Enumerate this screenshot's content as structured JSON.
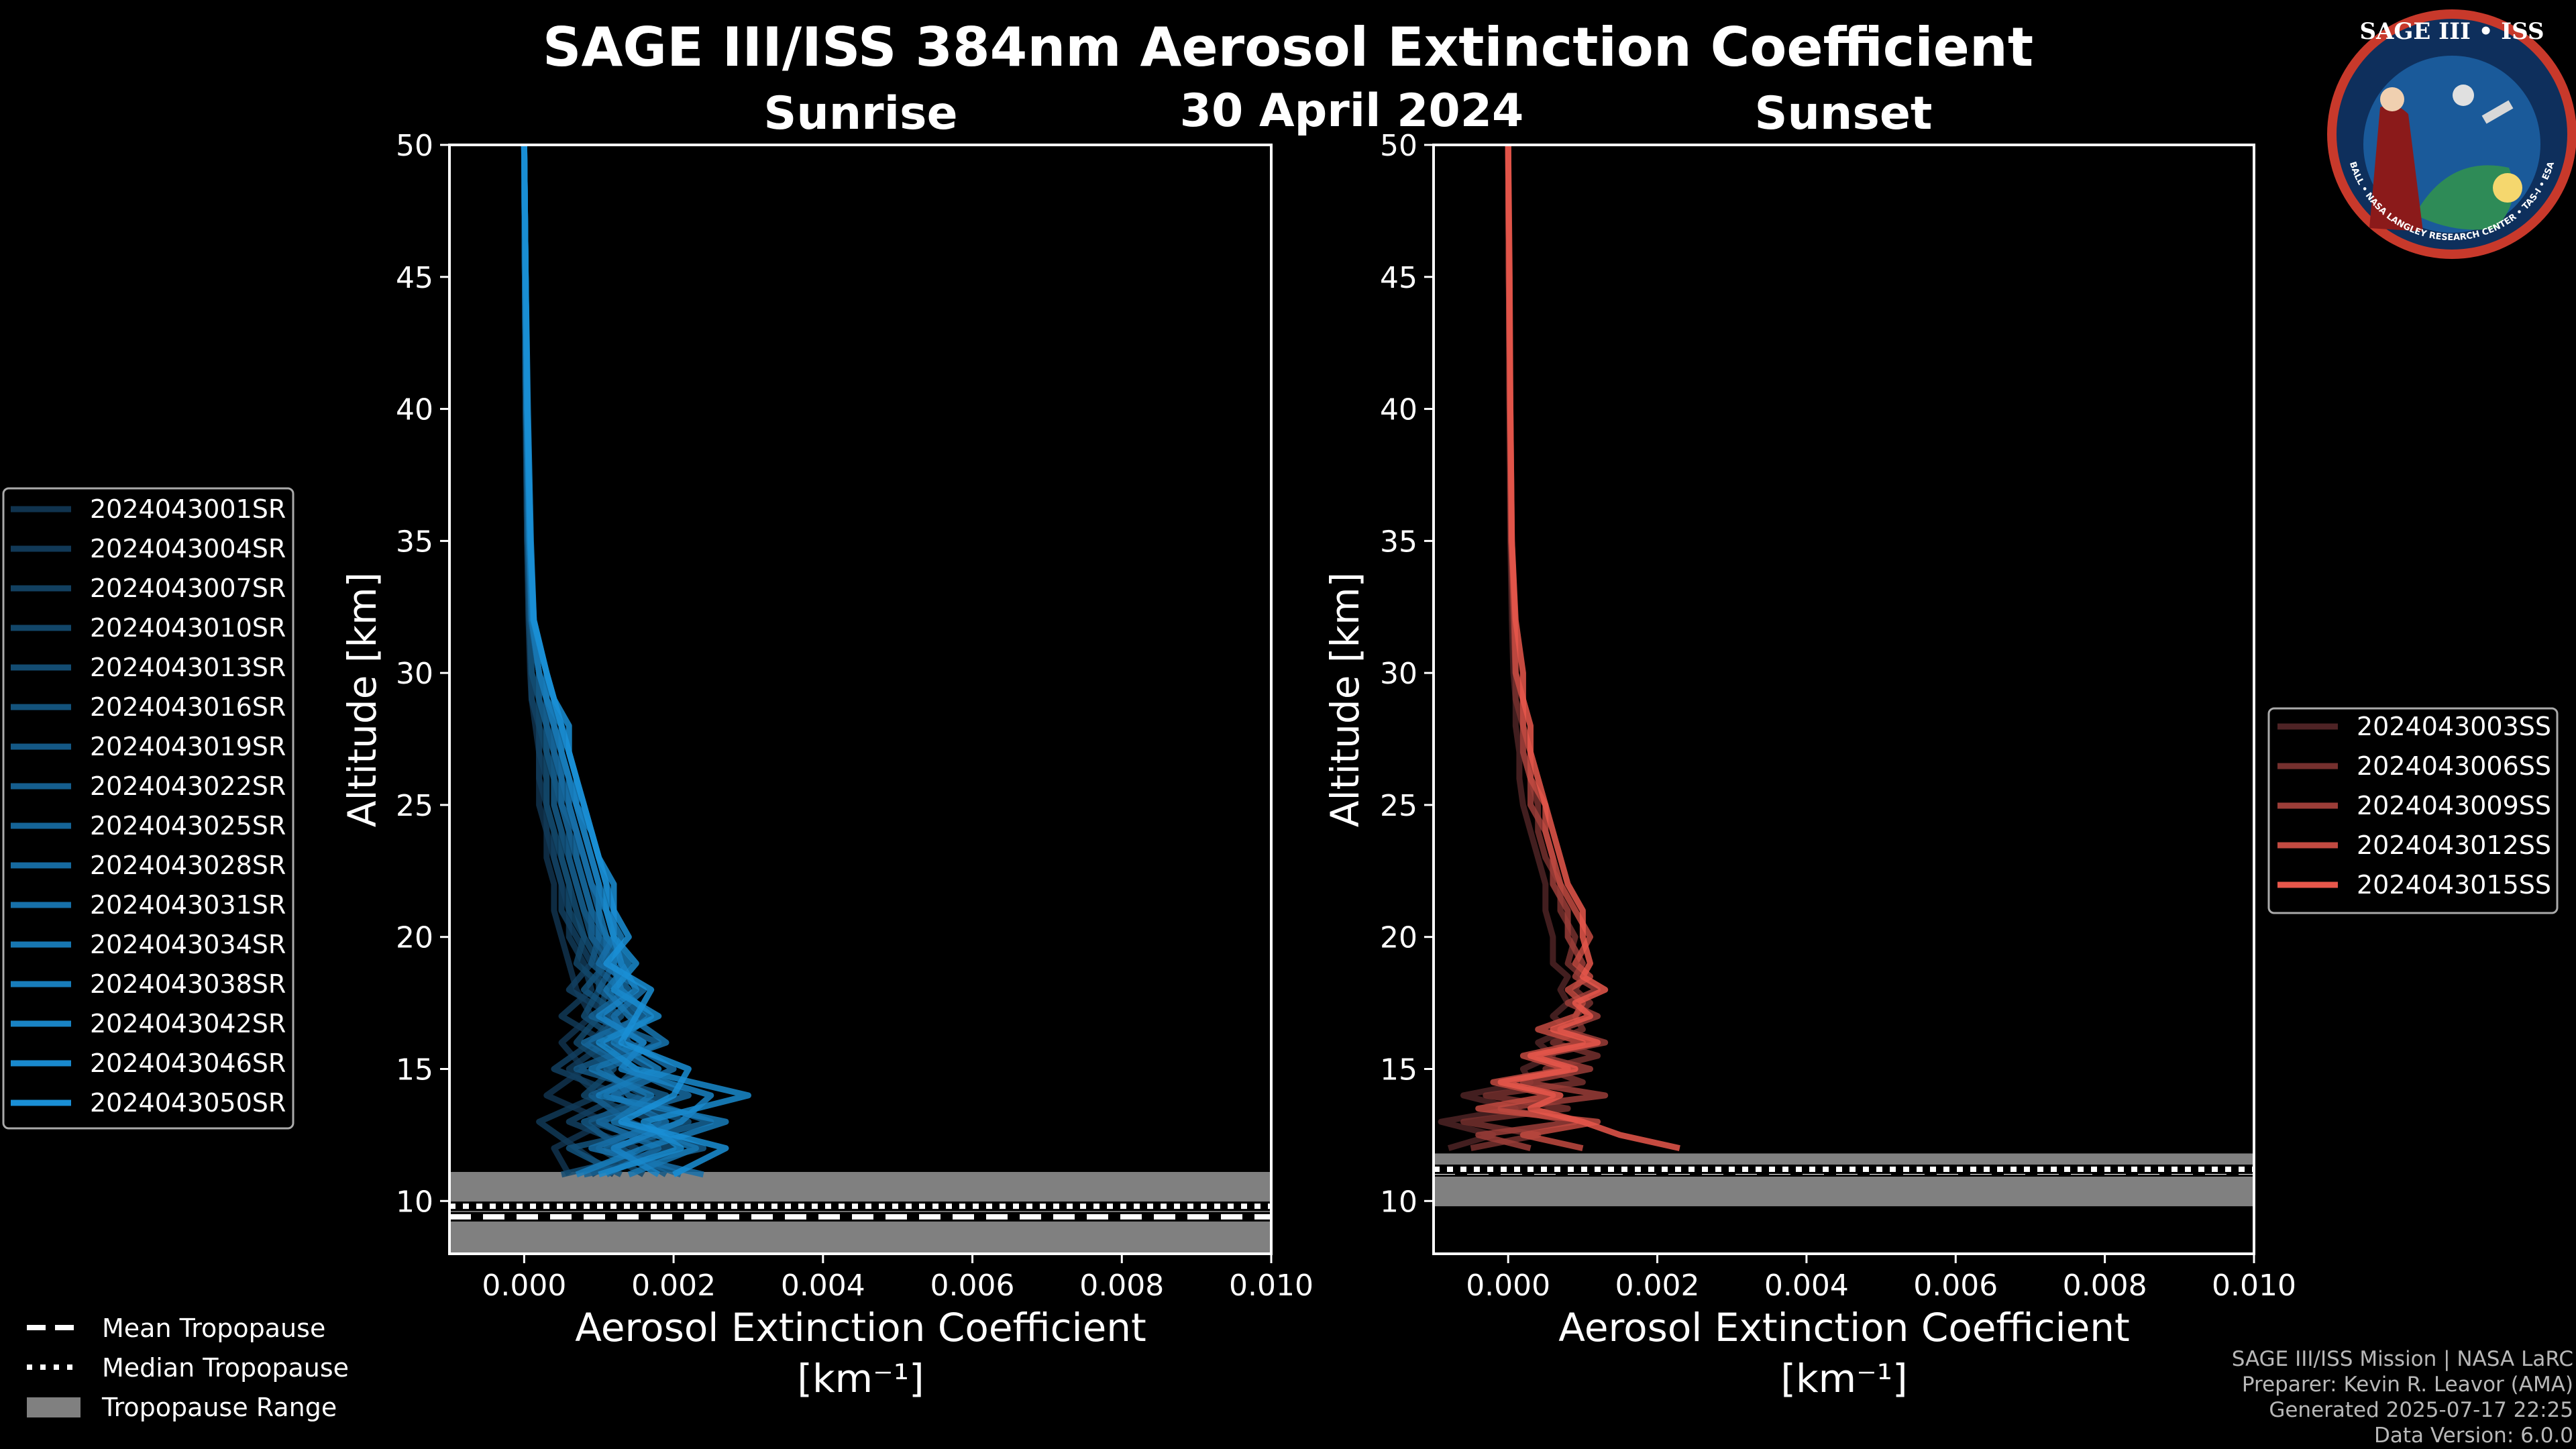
{
  "figure": {
    "title": "SAGE III/ISS 384nm Aerosol Extinction Coefficient",
    "date": "30 April 2024",
    "logo": {
      "top": "SAGE III • ISS",
      "ring": "BALL • NASA LANGLEY RESEARCH CENTER • TAS-I • ESA"
    },
    "credits": [
      "SAGE III/ISS Mission | NASA LaRC",
      "Preparer: Kevin R. Leavor (AMA)",
      "Generated 2025-07-17 22:25",
      "Data Version: 6.0.0"
    ],
    "tropopause_legend": [
      "Mean Tropopause",
      "Median Tropopause",
      "Tropopause Range"
    ]
  },
  "colors": {
    "background": "#000000",
    "sunrise": "#1a8fd6",
    "sunset": "#e8574b",
    "tropopause_fill": "#808080"
  },
  "chart_data": [
    {
      "type": "line",
      "title": "Sunrise",
      "xlabel": "Aerosol Extinction Coefficient",
      "xlabel_unit": "[km⁻¹]",
      "ylabel": "Altitude [km]",
      "xlim": [
        -0.001,
        0.01
      ],
      "ylim": [
        8,
        50
      ],
      "xticks": [
        0.0,
        0.002,
        0.004,
        0.006,
        0.008,
        0.01
      ],
      "xtick_labels": [
        "0.000",
        "0.002",
        "0.004",
        "0.006",
        "0.008",
        "0.010"
      ],
      "yticks": [
        10,
        15,
        20,
        25,
        30,
        35,
        40,
        45,
        50
      ],
      "tropopause": {
        "mean": 9.4,
        "median": 9.8,
        "range": [
          8.0,
          11.1
        ]
      },
      "altitudes": [
        11,
        12,
        13,
        14,
        15,
        16,
        17,
        18,
        19,
        20,
        21,
        22,
        23,
        24,
        25,
        26,
        27,
        28,
        29,
        30,
        32,
        35,
        40,
        45,
        50
      ],
      "series": [
        {
          "name": "2024043001SR",
          "values": [
            0.0006,
            0.0004,
            0.0011,
            0.0003,
            0.0008,
            0.0005,
            0.0009,
            0.0007,
            0.0006,
            0.0005,
            0.0004,
            0.0004,
            0.0003,
            0.0003,
            0.0002,
            0.0002,
            0.0002,
            0.00015,
            0.0001,
            8e-05,
            6e-05,
            4e-05,
            2e-05,
            1e-05,
            0.0
          ]
        },
        {
          "name": "2024043004SR",
          "values": [
            0.0012,
            0.0007,
            0.0002,
            0.001,
            0.0006,
            0.0011,
            0.0005,
            0.0009,
            0.0008,
            0.0006,
            0.0006,
            0.0005,
            0.0004,
            0.0003,
            0.0003,
            0.0002,
            0.0002,
            0.0002,
            0.0001,
            9e-05,
            6e-05,
            4e-05,
            2e-05,
            1e-05,
            0.0
          ]
        },
        {
          "name": "2024043007SR",
          "values": [
            0.0009,
            0.0015,
            0.0006,
            0.0013,
            0.0004,
            0.0009,
            0.0012,
            0.0006,
            0.0009,
            0.0007,
            0.0005,
            0.0005,
            0.0004,
            0.0004,
            0.0003,
            0.0003,
            0.0002,
            0.0002,
            0.0001,
            0.0001,
            7e-05,
            4e-05,
            2e-05,
            1e-05,
            0.0
          ]
        },
        {
          "name": "2024043010SR",
          "values": [
            0.0016,
            0.001,
            0.0018,
            0.0008,
            0.0012,
            0.0007,
            0.001,
            0.0011,
            0.0007,
            0.0008,
            0.0006,
            0.0006,
            0.0005,
            0.0004,
            0.0003,
            0.0003,
            0.0003,
            0.0002,
            0.0002,
            0.0001,
            7e-05,
            5e-05,
            2e-05,
            1e-05,
            0.0
          ]
        },
        {
          "name": "2024043013SR",
          "values": [
            0.0005,
            0.002,
            0.0009,
            0.0016,
            0.001,
            0.0013,
            0.0008,
            0.001,
            0.001,
            0.0008,
            0.0007,
            0.0006,
            0.0005,
            0.0005,
            0.0004,
            0.0004,
            0.0003,
            0.0003,
            0.0002,
            0.0001,
            8e-05,
            5e-05,
            3e-05,
            1e-05,
            0.0
          ]
        },
        {
          "name": "2024043016SR",
          "values": [
            0.0013,
            0.0006,
            0.0022,
            0.0011,
            0.0015,
            0.0009,
            0.0013,
            0.0008,
            0.0011,
            0.0009,
            0.0008,
            0.0007,
            0.0006,
            0.0005,
            0.0004,
            0.0004,
            0.0003,
            0.0003,
            0.0002,
            0.0002,
            8e-05,
            5e-05,
            3e-05,
            1e-05,
            0.0
          ]
        },
        {
          "name": "2024043019SR",
          "values": [
            0.0019,
            0.0013,
            0.0008,
            0.0019,
            0.0007,
            0.0016,
            0.0011,
            0.0013,
            0.0009,
            0.001,
            0.0008,
            0.0007,
            0.0006,
            0.0006,
            0.0005,
            0.0004,
            0.0004,
            0.0003,
            0.0002,
            0.0002,
            9e-05,
            6e-05,
            3e-05,
            1e-05,
            0.0
          ]
        },
        {
          "name": "2024043022SR",
          "values": [
            0.0008,
            0.0024,
            0.0014,
            0.0009,
            0.0017,
            0.0011,
            0.0015,
            0.001,
            0.0012,
            0.0009,
            0.0009,
            0.0008,
            0.0007,
            0.0006,
            0.0005,
            0.0005,
            0.0004,
            0.0003,
            0.0003,
            0.0002,
            0.0001,
            6e-05,
            3e-05,
            1e-05,
            0.0
          ]
        },
        {
          "name": "2024043025SR",
          "values": [
            0.0021,
            0.0011,
            0.0025,
            0.0014,
            0.0011,
            0.0018,
            0.0009,
            0.0014,
            0.0011,
            0.0011,
            0.0009,
            0.0008,
            0.0007,
            0.0007,
            0.0005,
            0.0005,
            0.0004,
            0.0004,
            0.0003,
            0.0002,
            0.0001,
            6e-05,
            3e-05,
            1e-05,
            0.0
          ]
        },
        {
          "name": "2024043028SR",
          "values": [
            0.0011,
            0.0018,
            0.001,
            0.0022,
            0.0014,
            0.0008,
            0.0016,
            0.0012,
            0.0013,
            0.001,
            0.001,
            0.0009,
            0.0008,
            0.0007,
            0.0006,
            0.0005,
            0.0005,
            0.0004,
            0.0003,
            0.0002,
            0.0001,
            7e-05,
            3e-05,
            1e-05,
            0.0
          ]
        },
        {
          "name": "2024043031SR",
          "values": [
            0.0024,
            0.0009,
            0.0019,
            0.0012,
            0.002,
            0.0014,
            0.0012,
            0.0016,
            0.001,
            0.0012,
            0.0011,
            0.0009,
            0.0008,
            0.0007,
            0.0006,
            0.0006,
            0.0005,
            0.0004,
            0.0003,
            0.0002,
            0.0001,
            7e-05,
            4e-05,
            2e-05,
            0.0
          ]
        },
        {
          "name": "2024043034SR",
          "values": [
            0.0014,
            0.0023,
            0.0012,
            0.0017,
            0.0009,
            0.0019,
            0.0014,
            0.0011,
            0.0014,
            0.0011,
            0.001,
            0.001,
            0.0009,
            0.0008,
            0.0007,
            0.0006,
            0.0005,
            0.0004,
            0.0003,
            0.0002,
            0.00011,
            7e-05,
            4e-05,
            2e-05,
            0.0
          ]
        },
        {
          "name": "2024043038SR",
          "values": [
            0.0007,
            0.0016,
            0.0027,
            0.001,
            0.0018,
            0.0012,
            0.0017,
            0.0013,
            0.0012,
            0.0013,
            0.0011,
            0.001,
            0.0009,
            0.0008,
            0.0007,
            0.0006,
            0.0005,
            0.0005,
            0.0003,
            0.0003,
            0.00012,
            8e-05,
            4e-05,
            2e-05,
            0.0
          ]
        },
        {
          "name": "2024043042SR",
          "values": [
            0.0018,
            0.0012,
            0.0021,
            0.0025,
            0.0013,
            0.0016,
            0.001,
            0.0015,
            0.0013,
            0.0012,
            0.0012,
            0.0011,
            0.001,
            0.0009,
            0.0007,
            0.0007,
            0.0006,
            0.0005,
            0.0004,
            0.0003,
            0.00012,
            8e-05,
            4e-05,
            2e-05,
            0.0
          ]
        },
        {
          "name": "2024043046SR",
          "values": [
            0.001,
            0.0021,
            0.0016,
            0.003,
            0.0015,
            0.001,
            0.0018,
            0.0012,
            0.0015,
            0.0012,
            0.0011,
            0.0011,
            0.001,
            0.0009,
            0.0008,
            0.0007,
            0.0006,
            0.0005,
            0.0004,
            0.0003,
            0.00013,
            8e-05,
            4e-05,
            2e-05,
            0.0
          ]
        },
        {
          "name": "2024043050SR",
          "values": [
            0.002,
            0.0027,
            0.0013,
            0.002,
            0.0022,
            0.0013,
            0.0015,
            0.0017,
            0.0011,
            0.0014,
            0.0012,
            0.0012,
            0.001,
            0.0009,
            0.0008,
            0.0007,
            0.0006,
            0.0006,
            0.0004,
            0.0003,
            0.00013,
            9e-05,
            5e-05,
            2e-05,
            0.0
          ]
        }
      ]
    },
    {
      "type": "line",
      "title": "Sunset",
      "xlabel": "Aerosol Extinction Coefficient",
      "xlabel_unit": "[km⁻¹]",
      "ylabel": "Altitude [km]",
      "xlim": [
        -0.001,
        0.01
      ],
      "ylim": [
        8,
        50
      ],
      "xticks": [
        0.0,
        0.002,
        0.004,
        0.006,
        0.008,
        0.01
      ],
      "xtick_labels": [
        "0.000",
        "0.002",
        "0.004",
        "0.006",
        "0.008",
        "0.010"
      ],
      "yticks": [
        10,
        15,
        20,
        25,
        30,
        35,
        40,
        45,
        50
      ],
      "tropopause": {
        "mean": 11.1,
        "median": 11.2,
        "range": [
          9.8,
          11.8
        ]
      },
      "altitudes": [
        12,
        12.5,
        13,
        13.5,
        14,
        14.5,
        15,
        15.5,
        16,
        16.5,
        17,
        17.5,
        18,
        18.5,
        19,
        20,
        21,
        22,
        23,
        24,
        25,
        26,
        27,
        28,
        29,
        30,
        32,
        35,
        40,
        45,
        50
      ],
      "series": [
        {
          "name": "2024043003SS",
          "values": [
            -0.0008,
            -0.0002,
            -0.0009,
            0.0001,
            -0.0006,
            0.0003,
            0.0002,
            0.0006,
            0.0004,
            0.0008,
            0.0006,
            0.0008,
            0.0007,
            0.0008,
            0.0006,
            0.0006,
            0.0005,
            0.0005,
            0.0004,
            0.0003,
            0.0002,
            0.00015,
            0.00015,
            0.0001,
            0.0001,
            7e-05,
            5e-05,
            3e-05,
            2e-05,
            1e-05,
            0.0
          ]
        },
        {
          "name": "2024043006SS",
          "values": [
            -0.0005,
            0.0004,
            -0.0006,
            0.0008,
            -0.0003,
            0.001,
            0.0005,
            0.0012,
            0.0006,
            0.001,
            0.0009,
            0.0011,
            0.0009,
            0.001,
            0.0008,
            0.0009,
            0.0007,
            0.0007,
            0.0005,
            0.0004,
            0.0004,
            0.0003,
            0.0002,
            0.0002,
            0.0001,
            0.0001,
            7e-05,
            4e-05,
            2e-05,
            1e-05,
            0.0
          ]
        },
        {
          "name": "2024043009SS",
          "values": [
            0.0003,
            -0.0004,
            0.0009,
            -0.0001,
            0.0013,
            0.0002,
            0.0011,
            0.0004,
            0.0013,
            0.0007,
            0.0012,
            0.0008,
            0.0012,
            0.0009,
            0.001,
            0.0008,
            0.0008,
            0.0006,
            0.0006,
            0.0005,
            0.0003,
            0.0003,
            0.0002,
            0.0002,
            0.0002,
            0.0001,
            8e-05,
            4e-05,
            2e-05,
            1e-05,
            0.0
          ]
        },
        {
          "name": "2024043012SS",
          "values": [
            0.001,
            0.0002,
            0.0012,
            -0.0004,
            0.0006,
            -0.0002,
            0.0008,
            0.0002,
            0.001,
            0.0004,
            0.0009,
            0.001,
            0.0008,
            0.0011,
            0.0009,
            0.0011,
            0.0009,
            0.0007,
            0.0006,
            0.0005,
            0.0005,
            0.0003,
            0.0003,
            0.0002,
            0.0002,
            0.0001,
            9e-05,
            5e-05,
            3e-05,
            1e-05,
            0.0
          ]
        },
        {
          "name": "2024043015SS",
          "values": [
            0.0023,
            0.0015,
            0.001,
            0.0003,
            0.0007,
            -0.0001,
            0.0009,
            0.0003,
            0.0012,
            0.0006,
            0.0011,
            0.0009,
            0.0013,
            0.001,
            0.0011,
            0.001,
            0.001,
            0.0008,
            0.0007,
            0.0006,
            0.0005,
            0.0004,
            0.0003,
            0.0003,
            0.0002,
            0.0002,
            0.0001,
            5e-05,
            3e-05,
            2e-05,
            0.0
          ]
        }
      ]
    }
  ]
}
